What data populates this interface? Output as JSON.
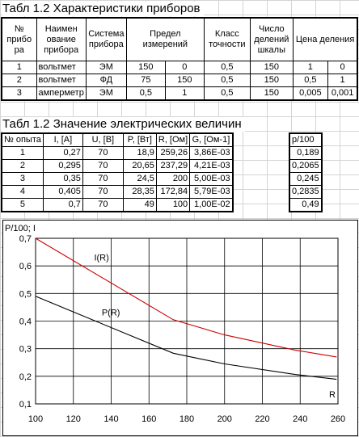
{
  "table1": {
    "title": "Табл 1.2 Характеристики приборов",
    "headers": [
      "№ прибо ра",
      "Наимен ование прибора",
      "Система прибора",
      "Предел измерений",
      "Класс точности",
      "Число делений шкалы",
      "Цена деления"
    ],
    "rows": [
      [
        "1",
        "вольтмет",
        "ЭМ",
        "150",
        "0",
        "0,5",
        "150",
        "1",
        "0"
      ],
      [
        "2",
        "вольтмет",
        "ФД",
        "75",
        "150",
        "0,5",
        "150",
        "0,5",
        "1"
      ],
      [
        "3",
        "амперметр",
        "ЭМ",
        "0,5",
        "1",
        "0,5",
        "150",
        "0,005",
        "0,001"
      ]
    ]
  },
  "table2": {
    "title": "Табл 1.2 Значение электрических величин",
    "headers": [
      "№ опыта",
      "I, [A]",
      "U, [B]",
      "P, [Вт]",
      "R, [Ом]",
      "G, [Ом-1]"
    ],
    "rows": [
      [
        "1",
        "0,27",
        "70",
        "18,9",
        "259,26",
        "3,86E-03"
      ],
      [
        "2",
        "0,295",
        "70",
        "20,65",
        "237,29",
        "4,21E-03"
      ],
      [
        "3",
        "0,35",
        "70",
        "24,5",
        "200",
        "5,00E-03"
      ],
      [
        "4",
        "0,405",
        "70",
        "28,35",
        "172,84",
        "5,79E-03"
      ],
      [
        "5",
        "0,7",
        "70",
        "49",
        "100",
        "1,00E-02"
      ]
    ]
  },
  "table3": {
    "header": "p/100",
    "values": [
      "0,189",
      "0,2065",
      "0,245",
      "0,2835",
      "0,49"
    ]
  },
  "chart_data": {
    "type": "line",
    "ylabel": "P/100; I",
    "xlabel": "R",
    "xlim": [
      100,
      260
    ],
    "ylim": [
      0.1,
      0.7
    ],
    "xticks": [
      "100",
      "120",
      "140",
      "160",
      "180",
      "200",
      "220",
      "240",
      "260"
    ],
    "yticks": [
      "0,1",
      "0,2",
      "0,3",
      "0,4",
      "0,5",
      "0,6",
      "0,7"
    ],
    "grid": true,
    "series": [
      {
        "name": "I(R)",
        "color": "#cc0000",
        "x": [
          100,
          172.84,
          200,
          237.29,
          259.26
        ],
        "y": [
          0.7,
          0.405,
          0.35,
          0.295,
          0.27
        ]
      },
      {
        "name": "P(R)",
        "color": "#000000",
        "x": [
          100,
          172.84,
          200,
          237.29,
          259.26
        ],
        "y": [
          0.49,
          0.2835,
          0.245,
          0.2065,
          0.189
        ]
      }
    ]
  }
}
